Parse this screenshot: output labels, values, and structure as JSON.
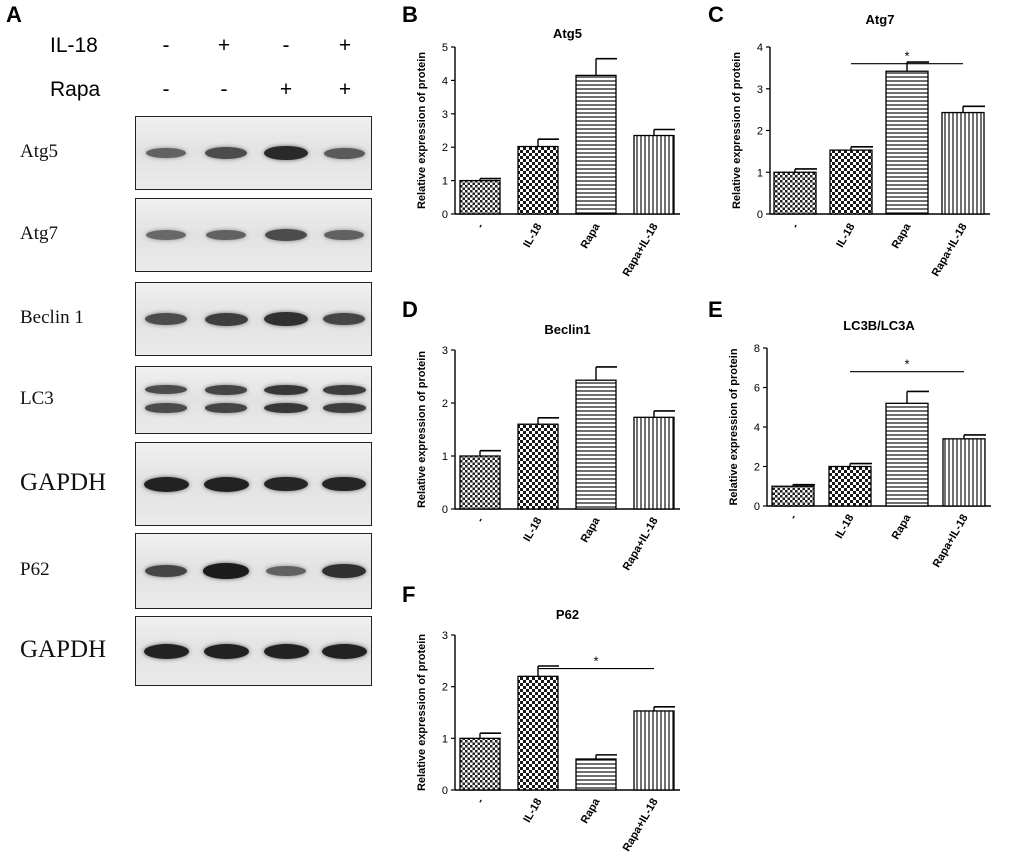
{
  "panel_a": {
    "letter": "A",
    "treatments": [
      {
        "label": "IL-18",
        "signs": [
          "-",
          "+",
          "-",
          "+"
        ]
      },
      {
        "label": "Rapa",
        "signs": [
          "-",
          "-",
          "+",
          "+"
        ]
      }
    ],
    "blots": [
      {
        "label": "Atg5",
        "intensity": [
          0.45,
          0.6,
          0.85,
          0.5
        ],
        "doublet": false
      },
      {
        "label": "Atg7",
        "intensity": [
          0.4,
          0.45,
          0.6,
          0.45
        ],
        "doublet": false
      },
      {
        "label": "Beclin 1",
        "intensity": [
          0.6,
          0.7,
          0.8,
          0.65
        ],
        "doublet": false
      },
      {
        "label": "LC3",
        "intensity": [
          0.6,
          0.65,
          0.75,
          0.7
        ],
        "doublet": true
      },
      {
        "label": "GAPDH",
        "intensity": [
          0.9,
          0.9,
          0.88,
          0.88
        ],
        "doublet": false
      },
      {
        "label": "P62",
        "intensity": [
          0.65,
          0.95,
          0.45,
          0.8
        ],
        "doublet": false
      },
      {
        "label": "GAPDH",
        "intensity": [
          0.9,
          0.9,
          0.9,
          0.9
        ],
        "doublet": false
      }
    ]
  },
  "chart_data": [
    {
      "id": "atg5",
      "letter": "B",
      "type": "bar",
      "title": "Atg5",
      "ylabel": "Relative expression of protein",
      "categories": [
        "-",
        "IL-18",
        "Rapa",
        "Rapa+IL-18"
      ],
      "values": [
        1.0,
        2.02,
        4.15,
        2.35
      ],
      "errors": [
        0.06,
        0.22,
        0.5,
        0.18
      ],
      "ylim": [
        0,
        5
      ],
      "yticks": [
        0,
        1,
        2,
        3,
        4,
        5
      ],
      "significance": null
    },
    {
      "id": "atg7",
      "letter": "C",
      "type": "bar",
      "title": "Atg7",
      "ylabel": "Relative expression of protein",
      "categories": [
        "-",
        "IL-18",
        "Rapa",
        "Rapa+IL-18"
      ],
      "values": [
        1.0,
        1.53,
        3.42,
        2.43
      ],
      "errors": [
        0.08,
        0.08,
        0.22,
        0.15
      ],
      "ylim": [
        0,
        4
      ],
      "yticks": [
        0,
        1,
        2,
        3,
        4
      ],
      "significance": {
        "from": 1,
        "to": 3,
        "y": 3.6,
        "label": "*"
      }
    },
    {
      "id": "beclin1",
      "letter": "D",
      "type": "bar",
      "title": "Beclin1",
      "ylabel": "Relative expression of protein",
      "categories": [
        "-",
        "IL-18",
        "Rapa",
        "Rapa+IL-18"
      ],
      "values": [
        1.0,
        1.6,
        2.43,
        1.73
      ],
      "errors": [
        0.1,
        0.12,
        0.25,
        0.12
      ],
      "ylim": [
        0,
        3
      ],
      "yticks": [
        0,
        1,
        2,
        3
      ],
      "significance": null
    },
    {
      "id": "lc3",
      "letter": "E",
      "type": "bar",
      "title": "LC3B/LC3A",
      "ylabel": "Relative expression of protein",
      "categories": [
        "-",
        "IL-18",
        "Rapa",
        "Rapa+IL-18"
      ],
      "values": [
        1.0,
        2.0,
        5.2,
        3.4
      ],
      "errors": [
        0.08,
        0.15,
        0.6,
        0.2
      ],
      "ylim": [
        0,
        8
      ],
      "yticks": [
        0,
        2,
        4,
        6,
        8
      ],
      "significance": {
        "from": 1,
        "to": 3,
        "y": 6.8,
        "label": "*"
      }
    },
    {
      "id": "p62",
      "letter": "F",
      "type": "bar",
      "title": "P62",
      "ylabel": "Relative expression of protein",
      "categories": [
        "-",
        "IL-18",
        "Rapa",
        "Rapa+IL-18"
      ],
      "values": [
        1.0,
        2.2,
        0.6,
        1.53
      ],
      "errors": [
        0.1,
        0.2,
        0.08,
        0.08
      ],
      "ylim": [
        0,
        3
      ],
      "yticks": [
        0,
        1,
        2,
        3
      ],
      "significance": {
        "from": 1,
        "to": 3,
        "y": 2.35,
        "label": "*"
      }
    }
  ]
}
